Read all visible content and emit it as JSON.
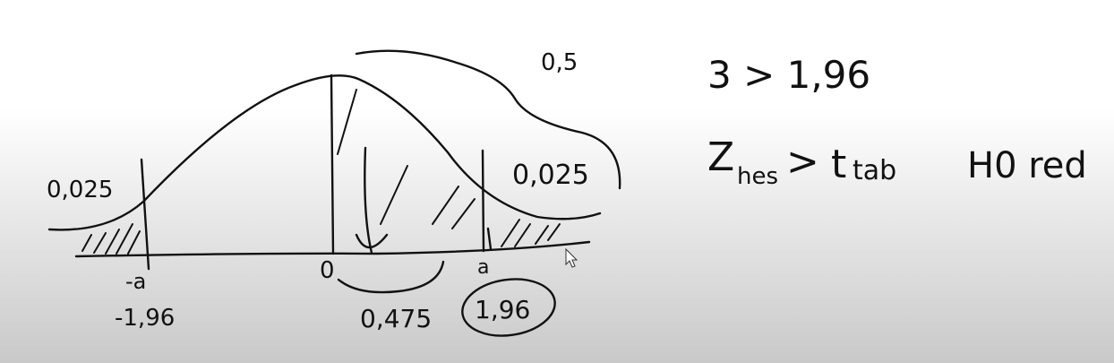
{
  "left_tail": {
    "area": "0,025",
    "bound": "-a",
    "value": "-1,96"
  },
  "center": {
    "mean": "0",
    "half_area": "0,5",
    "area": "0,475"
  },
  "right_tail": {
    "area": "0,025",
    "bound": "a",
    "value": "1,96"
  },
  "notes": {
    "comparison": "3 > 1,96",
    "decision": {
      "statistic": "Z",
      "statistic_sub": "hes",
      "operator": ">",
      "critical": "t",
      "critical_sub": "tab",
      "result": "H0 red"
    }
  }
}
